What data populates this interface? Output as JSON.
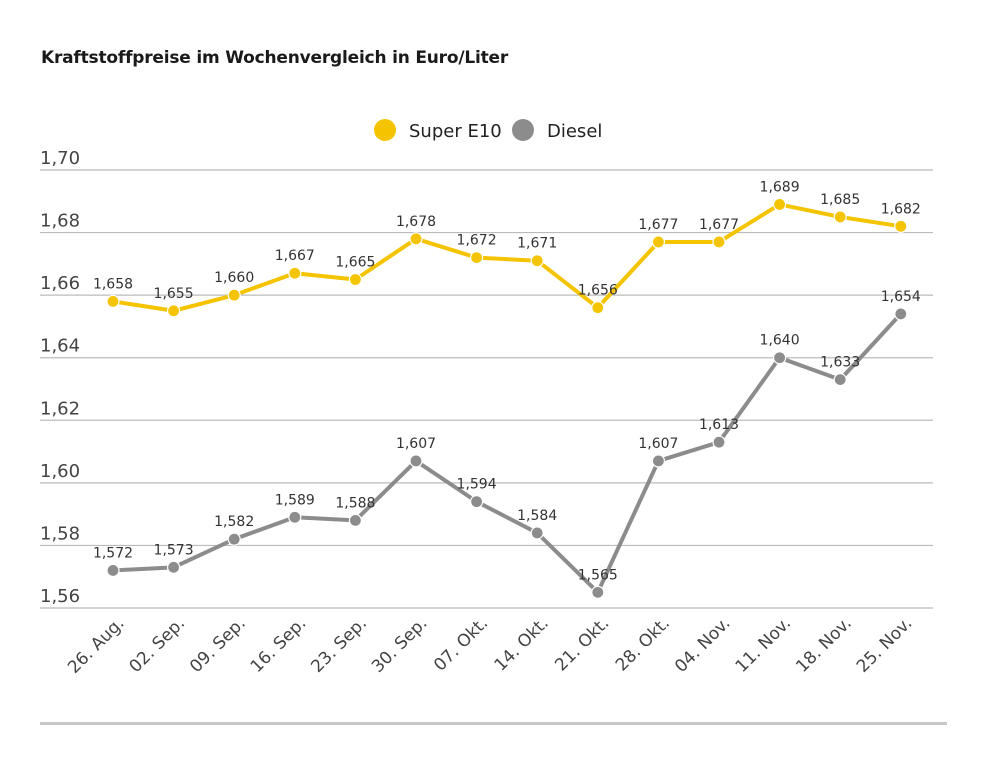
{
  "title": "Kraftstoffpreise im Wochenvergleich in Euro/Liter",
  "colors": {
    "super": "#f5c400",
    "diesel": "#8c8c8c",
    "grid": "#bbbbbb",
    "text": "#333333"
  },
  "chart_data": {
    "type": "line",
    "title": "Kraftstoffpreise im Wochenvergleich in Euro/Liter",
    "xlabel": "",
    "ylabel": "",
    "ylim": [
      1.56,
      1.7
    ],
    "yticks": [
      "1,56",
      "1,58",
      "1,60",
      "1,62",
      "1,64",
      "1,66",
      "1,68",
      "1,70"
    ],
    "grid": true,
    "legend_position": "top-center",
    "categories": [
      "26. Aug.",
      "02. Sep.",
      "09. Sep.",
      "16. Sep.",
      "23. Sep.",
      "30. Sep.",
      "07. Okt.",
      "14. Okt.",
      "21. Okt.",
      "28. Okt.",
      "04. Nov.",
      "11. Nov.",
      "18. Nov.",
      "25. Nov."
    ],
    "series": [
      {
        "name": "Super E10",
        "color": "#f5c400",
        "values": [
          1.658,
          1.655,
          1.66,
          1.667,
          1.665,
          1.678,
          1.672,
          1.671,
          1.656,
          1.677,
          1.677,
          1.689,
          1.685,
          1.682
        ],
        "labels": [
          "1,658",
          "1,655",
          "1,660",
          "1,667",
          "1,665",
          "1,678",
          "1,672",
          "1,671",
          "1,656",
          "1,677",
          "1,677",
          "1,689",
          "1,685",
          "1,682"
        ]
      },
      {
        "name": "Diesel",
        "color": "#8c8c8c",
        "values": [
          1.572,
          1.573,
          1.582,
          1.589,
          1.588,
          1.607,
          1.594,
          1.584,
          1.565,
          1.607,
          1.613,
          1.64,
          1.633,
          1.654
        ],
        "labels": [
          "1,572",
          "1,573",
          "1,582",
          "1,589",
          "1,588",
          "1,607",
          "1,594",
          "1,584",
          "1,565",
          "1,607",
          "1,613",
          "1,640",
          "1,633",
          "1,654"
        ]
      }
    ]
  }
}
